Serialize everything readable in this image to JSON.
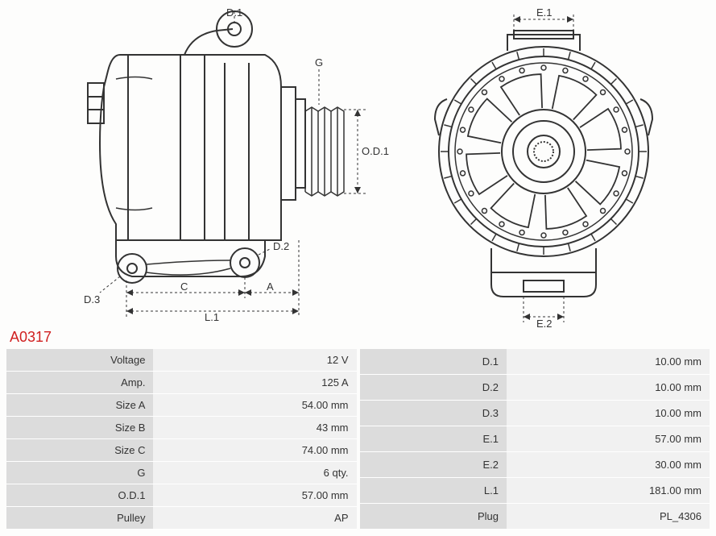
{
  "part_number": "A0317",
  "diagram": {
    "labels": {
      "D1": "D.1",
      "D2": "D.2",
      "D3": "D.3",
      "A": "A",
      "C": "C",
      "L1": "L.1",
      "G": "G",
      "OD1": "O.D.1",
      "E1": "E.1",
      "E2": "E.2"
    },
    "stroke_color": "#333333",
    "dim_color": "#333333",
    "background": "#fdfdfc"
  },
  "specs_left": [
    {
      "label": "Voltage",
      "value": "12 V"
    },
    {
      "label": "Amp.",
      "value": "125 A"
    },
    {
      "label": "Size A",
      "value": "54.00 mm"
    },
    {
      "label": "Size B",
      "value": "43 mm"
    },
    {
      "label": "Size C",
      "value": "74.00 mm"
    },
    {
      "label": "G",
      "value": "6 qty."
    },
    {
      "label": "O.D.1",
      "value": "57.00 mm"
    },
    {
      "label": "Pulley",
      "value": "AP"
    }
  ],
  "specs_right": [
    {
      "label": "D.1",
      "value": "10.00 mm"
    },
    {
      "label": "D.2",
      "value": "10.00 mm"
    },
    {
      "label": "D.3",
      "value": "10.00 mm"
    },
    {
      "label": "E.1",
      "value": "57.00 mm"
    },
    {
      "label": "E.2",
      "value": "30.00 mm"
    },
    {
      "label": "L.1",
      "value": "181.00 mm"
    },
    {
      "label": "Plug",
      "value": "PL_4306"
    }
  ]
}
